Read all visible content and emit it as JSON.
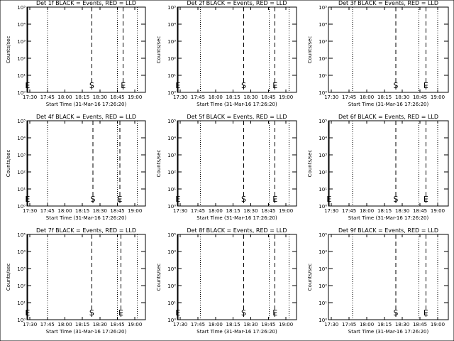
{
  "chart_data": [
    {
      "type": "line",
      "title": "Det 1f BLACK = Events, RED = LLD",
      "xlabel": "Start Time (31-Mar-16 17:26:20)",
      "ylabel": "Counts/sec",
      "log_y": true,
      "xlim": [
        27.5,
        129
      ],
      "ylim": [
        1,
        100000
      ],
      "xticks": [
        {
          "value": 30,
          "label": "17:30"
        },
        {
          "value": 45,
          "label": "17:45"
        },
        {
          "value": 60,
          "label": "18:00"
        },
        {
          "value": 75,
          "label": "18:15"
        },
        {
          "value": 90,
          "label": "18:30"
        },
        {
          "value": 105,
          "label": "18:45"
        },
        {
          "value": 120,
          "label": "19:00"
        }
      ],
      "yticks": [
        {
          "value": 1,
          "label": "10⁰"
        },
        {
          "value": 10,
          "label": "10¹"
        },
        {
          "value": 100,
          "label": "10²"
        },
        {
          "value": 1000,
          "label": "10³"
        },
        {
          "value": 10000,
          "label": "10⁴"
        },
        {
          "value": 100000,
          "label": "10⁵"
        }
      ],
      "markers": [
        {
          "x": 28,
          "label": "E",
          "style": "solid"
        },
        {
          "x": 45,
          "style": "dotted"
        },
        {
          "x": 83,
          "label": "S",
          "style": "dashed"
        },
        {
          "x": 105,
          "style": "dotted"
        },
        {
          "x": 110,
          "label": "E",
          "style": "dashed"
        },
        {
          "x": 122,
          "style": "dotted"
        }
      ]
    },
    {
      "type": "line",
      "title": "Det 2f BLACK = Events, RED = LLD",
      "xlabel": "Start Time (31-Mar-16 17:26:20)",
      "ylabel": "Counts/sec",
      "log_y": true,
      "xlim": [
        27.5,
        129
      ],
      "ylim": [
        1,
        100000
      ],
      "xticks": [
        {
          "value": 30,
          "label": "17:30"
        },
        {
          "value": 45,
          "label": "17:45"
        },
        {
          "value": 60,
          "label": "18:00"
        },
        {
          "value": 75,
          "label": "18:15"
        },
        {
          "value": 90,
          "label": "18:30"
        },
        {
          "value": 105,
          "label": "18:45"
        },
        {
          "value": 120,
          "label": "19:00"
        }
      ],
      "yticks": [
        {
          "value": 1,
          "label": "10⁰"
        },
        {
          "value": 10,
          "label": "10¹"
        },
        {
          "value": 100,
          "label": "10²"
        },
        {
          "value": 1000,
          "label": "10³"
        },
        {
          "value": 10000,
          "label": "10⁴"
        },
        {
          "value": 100000,
          "label": "10⁵"
        }
      ],
      "markers": [
        {
          "x": 28,
          "label": "E",
          "style": "solid"
        },
        {
          "x": 47,
          "style": "dotted"
        },
        {
          "x": 84,
          "label": "S",
          "style": "dashed"
        },
        {
          "x": 105.6,
          "style": "dotted"
        },
        {
          "x": 110.7,
          "label": "E",
          "style": "dashed"
        },
        {
          "x": 122.7,
          "style": "dotted"
        }
      ]
    },
    {
      "type": "line",
      "title": "Det 3f BLACK = Events, RED = LLD",
      "xlabel": "Start Time (31-Mar-16 17:26:20)",
      "ylabel": "Counts/sec",
      "log_y": true,
      "xlim": [
        27.5,
        129
      ],
      "ylim": [
        1,
        100000
      ],
      "xticks": [
        {
          "value": 30,
          "label": "17:30"
        },
        {
          "value": 45,
          "label": "17:45"
        },
        {
          "value": 60,
          "label": "18:00"
        },
        {
          "value": 75,
          "label": "18:15"
        },
        {
          "value": 90,
          "label": "18:30"
        },
        {
          "value": 105,
          "label": "18:45"
        },
        {
          "value": 120,
          "label": "19:00"
        }
      ],
      "yticks": [
        {
          "value": 1,
          "label": "10⁰"
        },
        {
          "value": 10,
          "label": "10¹"
        },
        {
          "value": 100,
          "label": "10²"
        },
        {
          "value": 1000,
          "label": "10³"
        },
        {
          "value": 10000,
          "label": "10⁴"
        },
        {
          "value": 100000,
          "label": "10⁵"
        }
      ],
      "markers": [
        {
          "x": 47.8,
          "style": "dotted"
        },
        {
          "x": 84.5,
          "label": "S",
          "style": "dashed"
        },
        {
          "x": 104,
          "style": "dotted"
        },
        {
          "x": 110,
          "label": "E",
          "style": "dashed"
        },
        {
          "x": 120,
          "style": "dotted"
        }
      ]
    },
    {
      "type": "line",
      "title": "Det 4f BLACK = Events, RED = LLD",
      "xlabel": "Start Time (31-Mar-16 17:26:20)",
      "ylabel": "Counts/sec",
      "log_y": true,
      "xlim": [
        27.5,
        129
      ],
      "ylim": [
        1,
        100000
      ],
      "xticks": [
        {
          "value": 30,
          "label": "17:30"
        },
        {
          "value": 45,
          "label": "17:45"
        },
        {
          "value": 60,
          "label": "18:00"
        },
        {
          "value": 75,
          "label": "18:15"
        },
        {
          "value": 90,
          "label": "18:30"
        },
        {
          "value": 105,
          "label": "18:45"
        },
        {
          "value": 120,
          "label": "19:00"
        }
      ],
      "yticks": [
        {
          "value": 1,
          "label": "10⁰"
        },
        {
          "value": 10,
          "label": "10¹"
        },
        {
          "value": 100,
          "label": "10²"
        },
        {
          "value": 1000,
          "label": "10³"
        },
        {
          "value": 10000,
          "label": "10⁴"
        },
        {
          "value": 100000,
          "label": "10⁵"
        }
      ],
      "markers": [
        {
          "x": 28,
          "label": "E",
          "style": "solid"
        },
        {
          "x": 45,
          "style": "dotted"
        },
        {
          "x": 84,
          "label": "S",
          "style": "dashed"
        },
        {
          "x": 105,
          "style": "dotted"
        },
        {
          "x": 107,
          "label": "E",
          "style": "dashed"
        },
        {
          "x": 122,
          "style": "dotted"
        }
      ]
    },
    {
      "type": "line",
      "title": "Det 5f BLACK = Events, RED = LLD",
      "xlabel": "Start Time (31-Mar-16 17:26:20)",
      "ylabel": "Counts/sec",
      "log_y": true,
      "xlim": [
        27.5,
        129
      ],
      "ylim": [
        1,
        100000
      ],
      "xticks": [
        {
          "value": 30,
          "label": "17:30"
        },
        {
          "value": 45,
          "label": "17:45"
        },
        {
          "value": 60,
          "label": "18:00"
        },
        {
          "value": 75,
          "label": "18:15"
        },
        {
          "value": 90,
          "label": "18:30"
        },
        {
          "value": 105,
          "label": "18:45"
        },
        {
          "value": 120,
          "label": "19:00"
        }
      ],
      "yticks": [
        {
          "value": 1,
          "label": "10⁰"
        },
        {
          "value": 10,
          "label": "10¹"
        },
        {
          "value": 100,
          "label": "10²"
        },
        {
          "value": 1000,
          "label": "10³"
        },
        {
          "value": 10000,
          "label": "10⁴"
        },
        {
          "value": 100000,
          "label": "10⁵"
        }
      ],
      "markers": [
        {
          "x": 28,
          "label": "E",
          "style": "solid"
        },
        {
          "x": 47,
          "style": "dotted"
        },
        {
          "x": 84,
          "label": "S",
          "style": "dashed"
        },
        {
          "x": 105.6,
          "style": "dotted"
        },
        {
          "x": 110.7,
          "label": "E",
          "style": "dashed"
        },
        {
          "x": 122.7,
          "style": "dotted"
        }
      ]
    },
    {
      "type": "line",
      "title": "Det 6f BLACK = Events, RED = LLD",
      "xlabel": "Start Time (31-Mar-16 17:26:20)",
      "ylabel": "Counts/sec",
      "log_y": true,
      "xlim": [
        27.5,
        129
      ],
      "ylim": [
        1,
        100000
      ],
      "xticks": [
        {
          "value": 30,
          "label": "17:30"
        },
        {
          "value": 45,
          "label": "17:45"
        },
        {
          "value": 60,
          "label": "18:00"
        },
        {
          "value": 75,
          "label": "18:15"
        },
        {
          "value": 90,
          "label": "18:30"
        },
        {
          "value": 105,
          "label": "18:45"
        },
        {
          "value": 120,
          "label": "19:00"
        }
      ],
      "yticks": [
        {
          "value": 1,
          "label": "10⁰"
        },
        {
          "value": 10,
          "label": "10¹"
        },
        {
          "value": 100,
          "label": "10²"
        },
        {
          "value": 1000,
          "label": "10³"
        },
        {
          "value": 10000,
          "label": "10⁴"
        },
        {
          "value": 100000,
          "label": "10⁵"
        }
      ],
      "markers": [
        {
          "x": 28,
          "label": "E",
          "style": "solid"
        },
        {
          "x": 47.8,
          "style": "dotted"
        },
        {
          "x": 84.5,
          "label": "S",
          "style": "dashed"
        },
        {
          "x": 104,
          "style": "dotted"
        },
        {
          "x": 110,
          "label": "E",
          "style": "dashed"
        },
        {
          "x": 120,
          "style": "dotted"
        }
      ]
    },
    {
      "type": "line",
      "title": "Det 7f BLACK = Events, RED = LLD",
      "xlabel": "Start Time (31-Mar-16 17:26:20)",
      "ylabel": "Counts/sec",
      "log_y": true,
      "xlim": [
        27.5,
        129
      ],
      "ylim": [
        1,
        100000
      ],
      "xticks": [
        {
          "value": 30,
          "label": "17:30"
        },
        {
          "value": 45,
          "label": "17:45"
        },
        {
          "value": 60,
          "label": "18:00"
        },
        {
          "value": 75,
          "label": "18:15"
        },
        {
          "value": 90,
          "label": "18:30"
        },
        {
          "value": 105,
          "label": "18:45"
        },
        {
          "value": 120,
          "label": "19:00"
        }
      ],
      "yticks": [
        {
          "value": 1,
          "label": "10⁰"
        },
        {
          "value": 10,
          "label": "10¹"
        },
        {
          "value": 100,
          "label": "10²"
        },
        {
          "value": 1000,
          "label": "10³"
        },
        {
          "value": 10000,
          "label": "10⁴"
        },
        {
          "value": 100000,
          "label": "10⁵"
        }
      ],
      "markers": [
        {
          "x": 28,
          "label": "E",
          "style": "solid"
        },
        {
          "x": 45,
          "style": "dotted"
        },
        {
          "x": 83,
          "label": "S",
          "style": "dashed"
        },
        {
          "x": 105,
          "style": "dotted"
        },
        {
          "x": 108,
          "label": "E",
          "style": "dashed"
        },
        {
          "x": 122,
          "style": "dotted"
        }
      ]
    },
    {
      "type": "line",
      "title": "Det 8f BLACK = Events, RED = LLD",
      "xlabel": "Start Time (31-Mar-16 17:26:20)",
      "ylabel": "Counts/sec",
      "log_y": true,
      "xlim": [
        27.5,
        129
      ],
      "ylim": [
        1,
        100000
      ],
      "xticks": [
        {
          "value": 30,
          "label": "17:30"
        },
        {
          "value": 45,
          "label": "17:45"
        },
        {
          "value": 60,
          "label": "18:00"
        },
        {
          "value": 75,
          "label": "18:15"
        },
        {
          "value": 90,
          "label": "18:30"
        },
        {
          "value": 105,
          "label": "18:45"
        },
        {
          "value": 120,
          "label": "19:00"
        }
      ],
      "yticks": [
        {
          "value": 1,
          "label": "10⁰"
        },
        {
          "value": 10,
          "label": "10¹"
        },
        {
          "value": 100,
          "label": "10²"
        },
        {
          "value": 1000,
          "label": "10³"
        },
        {
          "value": 10000,
          "label": "10⁴"
        },
        {
          "value": 100000,
          "label": "10⁵"
        }
      ],
      "markers": [
        {
          "x": 28,
          "label": "E",
          "style": "solid"
        },
        {
          "x": 47,
          "style": "dotted"
        },
        {
          "x": 84,
          "label": "S",
          "style": "dashed"
        },
        {
          "x": 105.6,
          "style": "dotted"
        },
        {
          "x": 110.7,
          "label": "E",
          "style": "dashed"
        },
        {
          "x": 122.7,
          "style": "dotted"
        }
      ]
    },
    {
      "type": "line",
      "title": "Det 9f BLACK = Events, RED = LLD",
      "xlabel": "Start Time (31-Mar-16 17:26:20)",
      "ylabel": "Counts/sec",
      "log_y": true,
      "xlim": [
        27.5,
        129
      ],
      "ylim": [
        1,
        100000
      ],
      "xticks": [
        {
          "value": 30,
          "label": "17:30"
        },
        {
          "value": 45,
          "label": "17:45"
        },
        {
          "value": 60,
          "label": "18:00"
        },
        {
          "value": 75,
          "label": "18:15"
        },
        {
          "value": 90,
          "label": "18:30"
        },
        {
          "value": 105,
          "label": "18:45"
        },
        {
          "value": 120,
          "label": "19:00"
        }
      ],
      "yticks": [
        {
          "value": 1,
          "label": "10⁰"
        },
        {
          "value": 10,
          "label": "10¹"
        },
        {
          "value": 100,
          "label": "10²"
        },
        {
          "value": 1000,
          "label": "10³"
        },
        {
          "value": 10000,
          "label": "10⁴"
        },
        {
          "value": 100000,
          "label": "10⁵"
        }
      ],
      "markers": [
        {
          "x": 47.8,
          "style": "dotted"
        },
        {
          "x": 84.5,
          "label": "S",
          "style": "dashed"
        },
        {
          "x": 104,
          "style": "dotted"
        },
        {
          "x": 110,
          "label": "E",
          "style": "dashed"
        },
        {
          "x": 120,
          "style": "dotted"
        }
      ]
    }
  ]
}
